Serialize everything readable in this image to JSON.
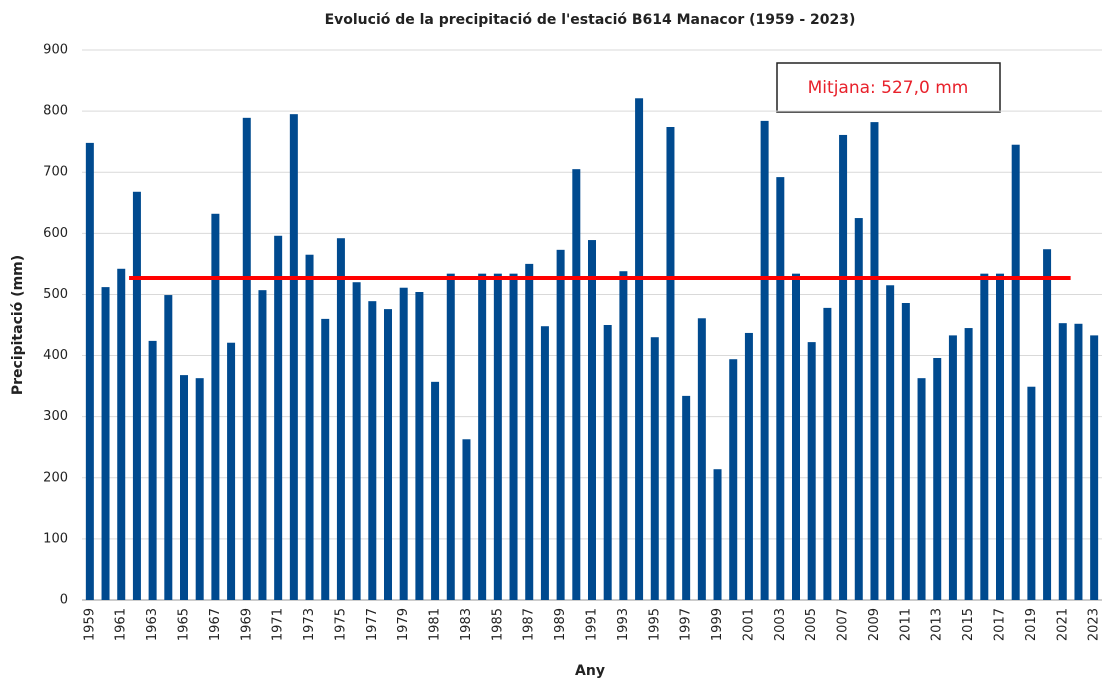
{
  "chart_data": {
    "type": "bar",
    "title": "Evolució de la precipitació de l'estació B614 Manacor (1959 - 2023)",
    "x_label": "Any",
    "y_label": "Precipitació (mm)",
    "categories": [
      "1959",
      null,
      "1961",
      null,
      "1963",
      null,
      "1965",
      null,
      "1967",
      null,
      "1969",
      null,
      "1971",
      null,
      "1973",
      null,
      "1975",
      null,
      "1977",
      null,
      "1979",
      null,
      "1981",
      null,
      "1983",
      null,
      "1985",
      null,
      "1987",
      null,
      "1989",
      null,
      "1991",
      null,
      "1993",
      null,
      "1995",
      null,
      "1997",
      null,
      "1999",
      null,
      "2001",
      null,
      "2003",
      null,
      "2005",
      null,
      "2007",
      null,
      "2009",
      null,
      "2011",
      null,
      "2013",
      null,
      "2015",
      null,
      "2017",
      null,
      "2019",
      null,
      "2021",
      null,
      "2023"
    ],
    "values": [
      748,
      512,
      542,
      668,
      424,
      499,
      368,
      363,
      632,
      421,
      789,
      507,
      596,
      795,
      565,
      460,
      592,
      520,
      489,
      476,
      511,
      504,
      357,
      534,
      263,
      534,
      534,
      534,
      550,
      448,
      573,
      705,
      589,
      450,
      538,
      821,
      430,
      774,
      334,
      461,
      214,
      394,
      437,
      784,
      692,
      534,
      422,
      478,
      761,
      625,
      782,
      515,
      486,
      363,
      396,
      433,
      445,
      534,
      534,
      745,
      349,
      574,
      453,
      452,
      433
    ],
    "color": "#004a8f",
    "mean": {
      "value": 527,
      "label": "Mitjana: 527,0 mm",
      "color": "#ff0000"
    },
    "ylim": [
      0,
      900
    ],
    "yticks": [
      0,
      100,
      200,
      300,
      400,
      500,
      600,
      700,
      800,
      900
    ],
    "grid": true
  }
}
